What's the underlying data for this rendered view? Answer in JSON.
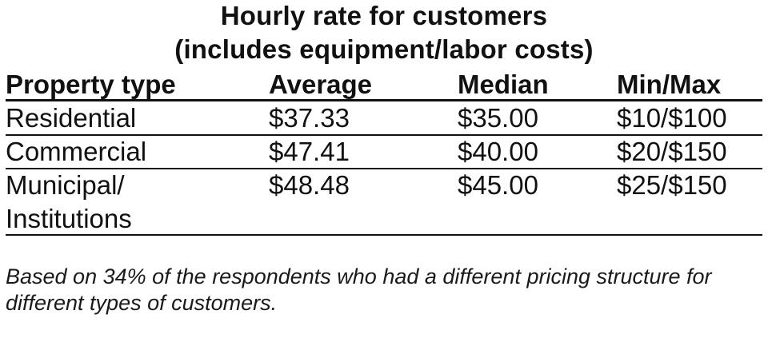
{
  "title": {
    "line1": "Hourly rate for customers",
    "line2": "(includes equipment/labor costs)"
  },
  "table": {
    "headers": [
      "Property type",
      "Average",
      "Median",
      "Min/Max"
    ],
    "rows": [
      {
        "type": "Residential",
        "type_line2": "",
        "average": "$37.33",
        "median": "$35.00",
        "minmax": "$10/$100"
      },
      {
        "type": "Commercial",
        "type_line2": "",
        "average": "$47.41",
        "median": "$40.00",
        "minmax": "$20/$150"
      },
      {
        "type": "Municipal/",
        "type_line2": "Institutions",
        "average": "$48.48",
        "median": "$45.00",
        "minmax": "$25/$150"
      }
    ]
  },
  "footnote": "Based on 34% of the respondents who had a different pricing structure for different types of customers."
}
